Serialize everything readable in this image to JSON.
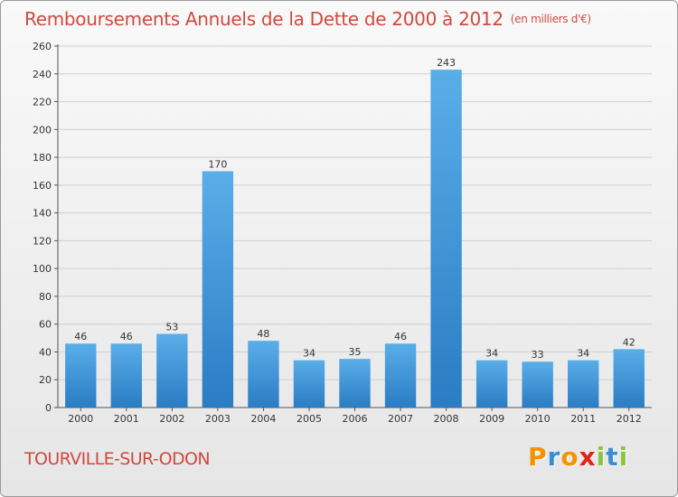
{
  "title": "Remboursements Annuels de la Dette de 2000 à 2012",
  "unit": "(en milliers d'€)",
  "city": "TOURVILLE-SUR-ODON",
  "logo": {
    "text": "Proxiti",
    "letters": [
      {
        "char": "P",
        "color": "#f29400"
      },
      {
        "char": "r",
        "color": "#3a8fd0"
      },
      {
        "char": "o",
        "color": "#f29400"
      },
      {
        "char": "x",
        "color": "#e2231a"
      },
      {
        "char": "i",
        "color": "#8cc63f"
      },
      {
        "char": "t",
        "color": "#3a8fd0"
      },
      {
        "char": "i",
        "color": "#8cc63f"
      }
    ]
  },
  "colors": {
    "title": "#d0493f",
    "bar_top": "#5aaee8",
    "bar_bottom": "#2a7cc4"
  },
  "chart_data": {
    "type": "bar",
    "categories": [
      "2000",
      "2001",
      "2002",
      "2003",
      "2004",
      "2005",
      "2006",
      "2007",
      "2008",
      "2009",
      "2010",
      "2011",
      "2012"
    ],
    "values": [
      46,
      46,
      53,
      170,
      48,
      34,
      35,
      46,
      243,
      34,
      33,
      34,
      42
    ],
    "ylim": [
      0,
      260
    ],
    "yticks": [
      0,
      20,
      40,
      60,
      80,
      100,
      120,
      140,
      160,
      180,
      200,
      220,
      240,
      260
    ],
    "grid": true,
    "data_labels": true
  }
}
